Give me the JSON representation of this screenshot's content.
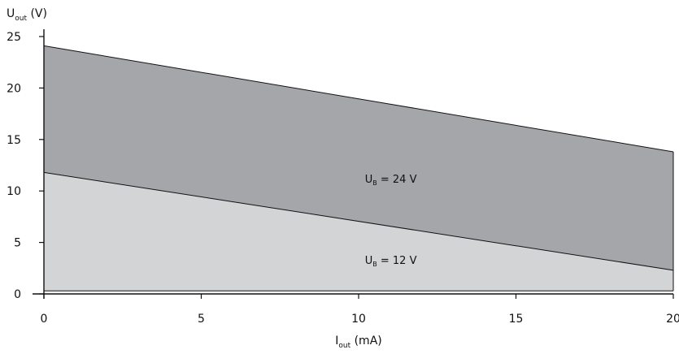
{
  "chart_data": {
    "type": "area",
    "title": "",
    "xlabel": {
      "main": "I",
      "sub": "out",
      "unit": " (mA)"
    },
    "ylabel": {
      "main": "U",
      "sub": "out",
      "unit": " (V)"
    },
    "xlim": [
      0,
      20
    ],
    "ylim": [
      0,
      25
    ],
    "xticks": [
      "0",
      "5",
      "10",
      "15",
      "20"
    ],
    "yticks": [
      "0",
      "5",
      "10",
      "15",
      "20",
      "25"
    ],
    "grid": false,
    "colors": {
      "region_24v": "#a5a6aa",
      "region_12v": "#d3d4d6",
      "line": "#111111"
    },
    "series": [
      {
        "name": "24V",
        "x": [
          0,
          20
        ],
        "y": [
          24.1,
          13.8
        ],
        "label": {
          "main": "U",
          "sub": "B",
          "rest": " = 24 V",
          "x": 10.2,
          "y": 10.8
        }
      },
      {
        "name": "12V",
        "x": [
          0,
          20
        ],
        "y": [
          11.8,
          2.3
        ],
        "label": {
          "main": "U",
          "sub": "B",
          "rest": " = 12 V",
          "x": 10.2,
          "y": 2.9
        }
      }
    ],
    "baseline": 0.3
  }
}
